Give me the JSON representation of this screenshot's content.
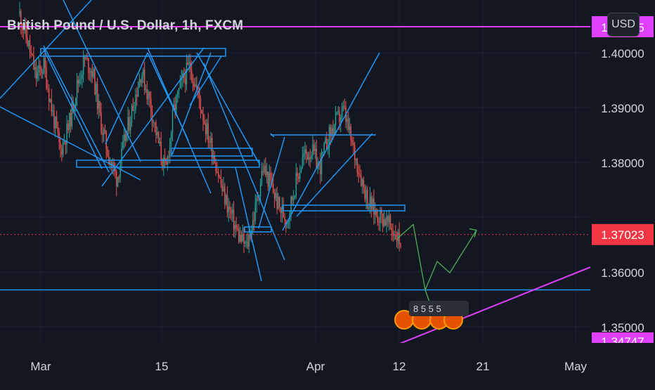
{
  "header": {
    "title": "British Pound / U.S. Dollar, 1h, FXCM",
    "currency_button": "USD"
  },
  "price_axis": {
    "current_price_label": "1.37023",
    "top_partial_label": "1.40915",
    "bottom_partial_label": "1.34747",
    "hidden_tick_label": "1.35000"
  },
  "events": {
    "badge_text": "8 5 5 5"
  },
  "colors": {
    "background": "#131722",
    "text": "#d1d4dc",
    "bull_candle": "#26a69a",
    "bear_candle": "#ef5350",
    "drawing_blue": "#2196f3",
    "magenta": "#e040fb",
    "arrow_green": "#4caf50",
    "current_price": "#f23645"
  },
  "chart_data": {
    "type": "candlestick",
    "title": "British Pound / U.S. Dollar, 1h, FXCM",
    "x_ticks": [
      "Mar",
      "15",
      "Apr",
      "12",
      "21",
      "May"
    ],
    "y_ticks": [
      1.4,
      1.39,
      1.38,
      1.37,
      1.36
    ],
    "y_tick_labels": [
      "1.40000",
      "1.39000",
      "1.38000",
      "1.37023",
      "1.36000"
    ],
    "ylim": [
      1.3435,
      1.4115
    ],
    "current_price": 1.37023,
    "price_path": [
      1.409,
      1.404,
      1.398,
      1.4,
      1.392,
      1.385,
      1.389,
      1.396,
      1.401,
      1.399,
      1.39,
      1.384,
      1.38,
      1.387,
      1.393,
      1.399,
      1.394,
      1.387,
      1.381,
      1.392,
      1.397,
      1.4,
      1.395,
      1.389,
      1.384,
      1.378,
      1.374,
      1.37,
      1.368,
      1.374,
      1.382,
      1.379,
      1.375,
      1.373,
      1.379,
      1.384,
      1.385,
      1.382,
      1.387,
      1.39,
      1.392,
      1.386,
      1.381,
      1.376,
      1.374,
      1.373,
      1.371,
      1.369
    ],
    "horizontal_levels": [
      1.3605
    ],
    "support_line": {
      "from": [
        "Apr",
        1.345
      ],
      "to": [
        "May",
        1.3645
      ]
    },
    "projected_path": [
      1.3695,
      1.372,
      1.3605,
      1.3655,
      1.3635,
      1.371
    ],
    "projected_drop": 1.3535
  }
}
